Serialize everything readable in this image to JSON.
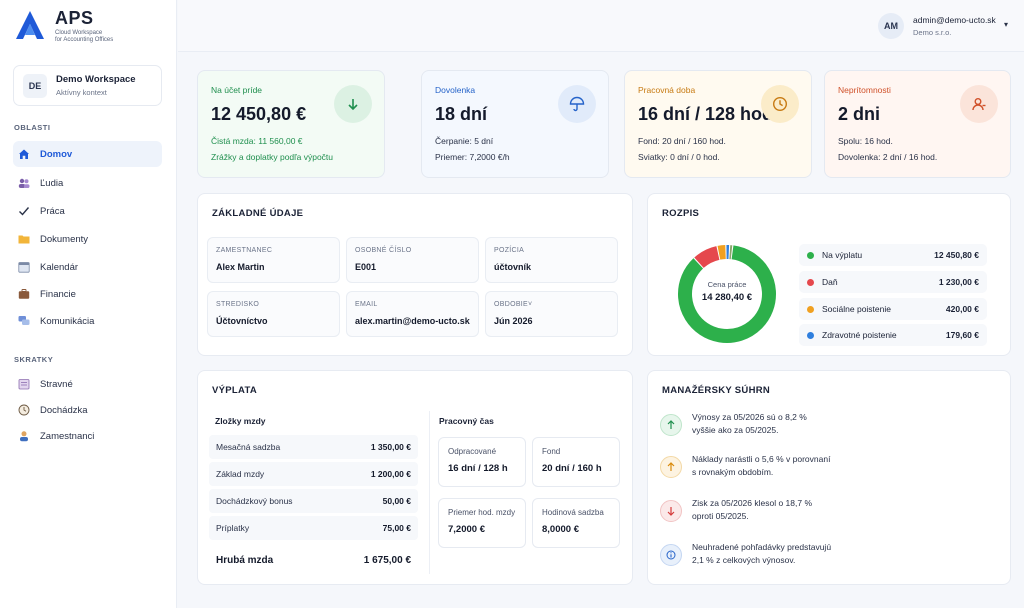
{
  "app": {
    "title": "APS",
    "subtitle_line1": "Cloud Workspace",
    "subtitle_line2": "for Accounting Offices"
  },
  "workspace": {
    "badge": "DE",
    "name": "Demo Workspace",
    "context": "Aktívny kontext"
  },
  "sidebar": {
    "section_main": "OBLASTI",
    "items": [
      {
        "label": "Domov",
        "icon": "home-icon"
      },
      {
        "label": "Ľudia",
        "icon": "people-icon"
      },
      {
        "label": "Práca",
        "icon": "check-icon"
      },
      {
        "label": "Dokumenty",
        "icon": "folder-icon"
      },
      {
        "label": "Kalendár",
        "icon": "calendar-icon"
      },
      {
        "label": "Financie",
        "icon": "briefcase-icon"
      },
      {
        "label": "Komunikácia",
        "icon": "chat-icon"
      }
    ],
    "section_shortcuts": "SKRATKY",
    "shortcuts": [
      {
        "label": "Stravné",
        "icon": "receipt-icon"
      },
      {
        "label": "Dochádzka",
        "icon": "clock-icon"
      },
      {
        "label": "Zamestnanci",
        "icon": "person-icon"
      }
    ]
  },
  "user": {
    "initials": "AM",
    "email": "admin@demo-ucto.sk",
    "company": "Demo s.r.o.",
    "caret": "▾"
  },
  "stats": [
    {
      "label": "Na účet príde",
      "value": "12 450,80 €",
      "line1": "Čistá mzda: 11 560,00 €",
      "line2": "Zrážky a doplatky podľa výpočtu",
      "icon": "arrow-down-icon",
      "color": "#1f8f4e"
    },
    {
      "label": "Dovolenka",
      "value": "18 dní",
      "line1": "Čerpanie: 5 dní",
      "line2": "Priemer: 7,2000 €/h",
      "icon": "umbrella-icon",
      "color": "#2563c9"
    },
    {
      "label": "Pracovná doba",
      "value": "16 dní / 128 hod.",
      "line1": "Fond: 20 dní / 160 hod.",
      "line2": "Sviatky: 0 dní / 0 hod.",
      "icon": "clock-icon",
      "color": "#c77a12"
    },
    {
      "label": "Neprítomnosti",
      "value": "2 dni",
      "line1": "Spolu: 16 hod.",
      "line2": "Dovolenka: 2 dní / 16 hod.",
      "icon": "person-icon",
      "color": "#d0512a"
    }
  ],
  "basic": {
    "title": "ZÁKLADNÉ ÚDAJE",
    "fields": [
      {
        "label": "ZAMESTNANEC",
        "value": "Alex Martin"
      },
      {
        "label": "OSOBNÉ ČÍSLO",
        "value": "E001"
      },
      {
        "label": "POZÍCIA",
        "value": "účtovník"
      },
      {
        "label": "STREDISKO",
        "value": "Účtovníctvo"
      },
      {
        "label": "EMAIL",
        "value": "alex.martin@demo-ucto.sk"
      },
      {
        "label": "OBDOBIE˅",
        "value": "Jún 2026"
      }
    ]
  },
  "breakdown": {
    "title": "ROZPIS",
    "center_label": "Cena práce",
    "center_value": "14 280,40 €",
    "items": [
      {
        "label": "Na výplatu",
        "value": "12 450,80 €",
        "amount": 12450.8,
        "color": "#2db04b"
      },
      {
        "label": "Daň",
        "value": "1 230,00 €",
        "amount": 1230.0,
        "color": "#e5484d"
      },
      {
        "label": "Sociálne poistenie",
        "value": "420,00 €",
        "amount": 420.0,
        "color": "#f0a020"
      },
      {
        "label": "Zdravotné poistenie",
        "value": "179,60 €",
        "amount": 179.6,
        "color": "#2f7fde"
      }
    ],
    "extra_slice": {
      "amount": 150,
      "color": "#8aa46a"
    }
  },
  "payout": {
    "title": "VÝPLATA",
    "components_title": "Zložky mzdy",
    "rows": [
      {
        "label": "Mesačná sadzba",
        "value": "1 350,00 €"
      },
      {
        "label": "Základ mzdy",
        "value": "1 200,00 €"
      },
      {
        "label": "Dochádzkový bonus",
        "value": "50,00 €"
      },
      {
        "label": "Príplatky",
        "value": "75,00 €"
      }
    ],
    "gross_label": "Hrubá mzda",
    "gross_value": "1 675,00 €",
    "time_title": "Pracovný čas",
    "tiles": [
      {
        "label": "Odpracované",
        "value": "16 dní / 128 h"
      },
      {
        "label": "Fond",
        "value": "20 dní / 160 h"
      },
      {
        "label": "Priemer hod. mzdy",
        "value": "7,2000 €"
      },
      {
        "label": "Hodinová sadzba",
        "value": "8,0000 €"
      }
    ]
  },
  "summary": {
    "title": "MANAŽÉRSKY SÚHRN",
    "items": [
      {
        "text": "Výnosy za 05/2026 sú o 8,2 % vyššie ako za 05/2025.",
        "icon": "arrow-up-icon",
        "color": "#1f8f4e",
        "bg": "#e7f6ec"
      },
      {
        "text": "Náklady narástli o 5,6 % v porovnaní s rovnakým obdobím.",
        "icon": "arrow-up-icon",
        "color": "#d98a0b",
        "bg": "#fdf3e1"
      },
      {
        "text": "Zisk za 05/2026 klesol o 18,7 % oproti 05/2025.",
        "icon": "arrow-down-icon",
        "color": "#d43b3b",
        "bg": "#fbe9e9"
      },
      {
        "text": "Neuhradené pohľadávky predstavujú 2,1 % z celkových výnosov.",
        "icon": "info-icon",
        "color": "#2563c9",
        "bg": "#e8f0fb"
      }
    ]
  }
}
